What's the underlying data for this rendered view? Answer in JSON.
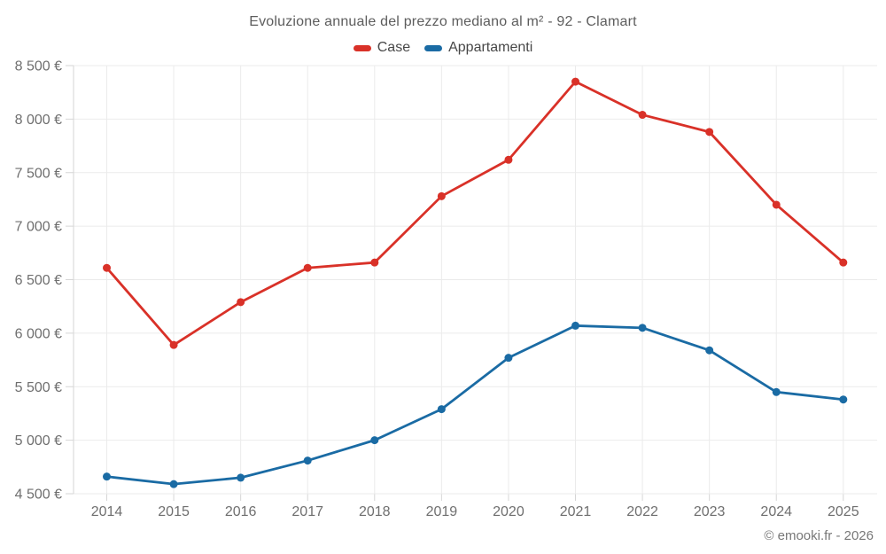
{
  "header": {
    "title": "Evoluzione annuale del prezzo mediano al m² - 92 - Clamart"
  },
  "legend": {
    "items": [
      {
        "label": "Case",
        "color": "#d93128"
      },
      {
        "label": "Appartamenti",
        "color": "#1a6ba4"
      }
    ]
  },
  "footer": {
    "copyright": "© emooki.fr - 2026"
  },
  "colors": {
    "grid": "#ebebeb",
    "axis": "#d6d6d6",
    "tick": "#d6d6d6",
    "axis_label_text": "#6f6f6f",
    "title_text": "#5d5d5d",
    "series_case": "#d93128",
    "series_appartamenti": "#1a6ba4"
  },
  "chart_data": {
    "type": "line",
    "title": "Evoluzione annuale del prezzo mediano al m² - 92 - Clamart",
    "categories": [
      "2014",
      "2015",
      "2016",
      "2017",
      "2018",
      "2019",
      "2020",
      "2021",
      "2022",
      "2023",
      "2024",
      "2025"
    ],
    "series": [
      {
        "name": "Case",
        "color": "#d93128",
        "values": [
          6610,
          5890,
          6290,
          6610,
          6660,
          7280,
          7620,
          8350,
          8040,
          7880,
          7200,
          6660
        ]
      },
      {
        "name": "Appartamenti",
        "color": "#1a6ba4",
        "values": [
          4660,
          4590,
          4650,
          4810,
          5000,
          5290,
          5770,
          6070,
          6050,
          5840,
          5450,
          5380
        ]
      }
    ],
    "xlabel": "",
    "ylabel": "",
    "ylim": [
      4500,
      8500
    ],
    "ytick_step": 500,
    "ytick_labels": [
      "4 500 €",
      "5 000 €",
      "5 500 €",
      "6 000 €",
      "6 500 €",
      "7 000 €",
      "7 500 €",
      "8 000 €",
      "8 500 €"
    ],
    "grid": true,
    "legend_position": "top",
    "markers": true
  }
}
